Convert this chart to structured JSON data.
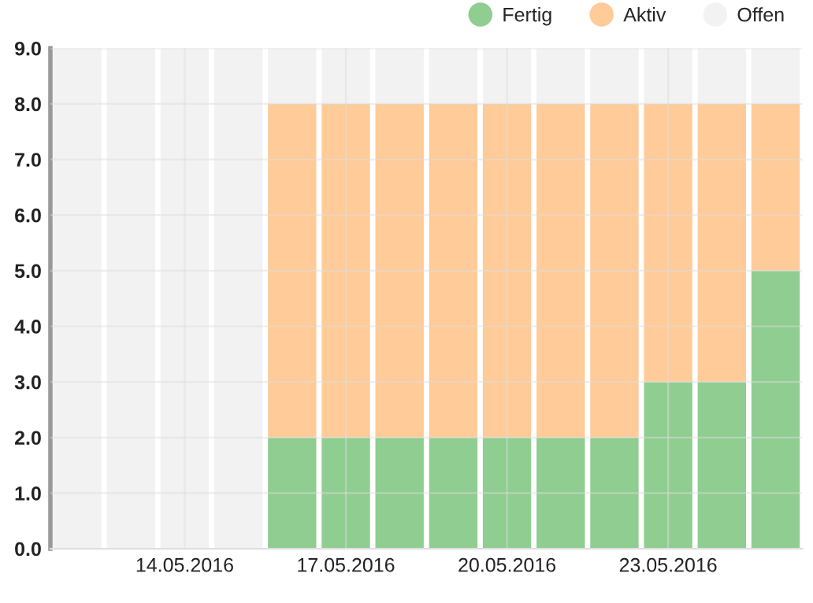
{
  "chart_data": {
    "type": "bar",
    "stacked": true,
    "categories": [
      null,
      null,
      "14.05.2016",
      null,
      null,
      "17.05.2016",
      null,
      null,
      "20.05.2016",
      null,
      null,
      "23.05.2016",
      null,
      null
    ],
    "series": [
      {
        "name": "Fertig",
        "color": "#8fcd91",
        "values": [
          0,
          0,
          0,
          0,
          2,
          2,
          2,
          2,
          2,
          2,
          2,
          3,
          3,
          5
        ]
      },
      {
        "name": "Aktiv",
        "color": "#fecb99",
        "values": [
          0,
          0,
          0,
          0,
          6,
          6,
          6,
          6,
          6,
          6,
          6,
          5,
          5,
          3
        ]
      },
      {
        "name": "Offen",
        "color": "#f2f2f2",
        "values": [
          9,
          9,
          9,
          9,
          1,
          1,
          1,
          1,
          1,
          1,
          1,
          1,
          1,
          1
        ]
      }
    ],
    "ylim": [
      0,
      9
    ],
    "yticks": [
      {
        "value": 0,
        "label": "0.0"
      },
      {
        "value": 1,
        "label": "1.0"
      },
      {
        "value": 2,
        "label": "2.0"
      },
      {
        "value": 3,
        "label": "3.0"
      },
      {
        "value": 4,
        "label": "4.0"
      },
      {
        "value": 5,
        "label": "5.0"
      },
      {
        "value": 6,
        "label": "6.0"
      },
      {
        "value": 7,
        "label": "7.0"
      },
      {
        "value": 8,
        "label": "8.0"
      },
      {
        "value": 9,
        "label": "9.0"
      }
    ],
    "grid": true,
    "legend": "top right"
  }
}
